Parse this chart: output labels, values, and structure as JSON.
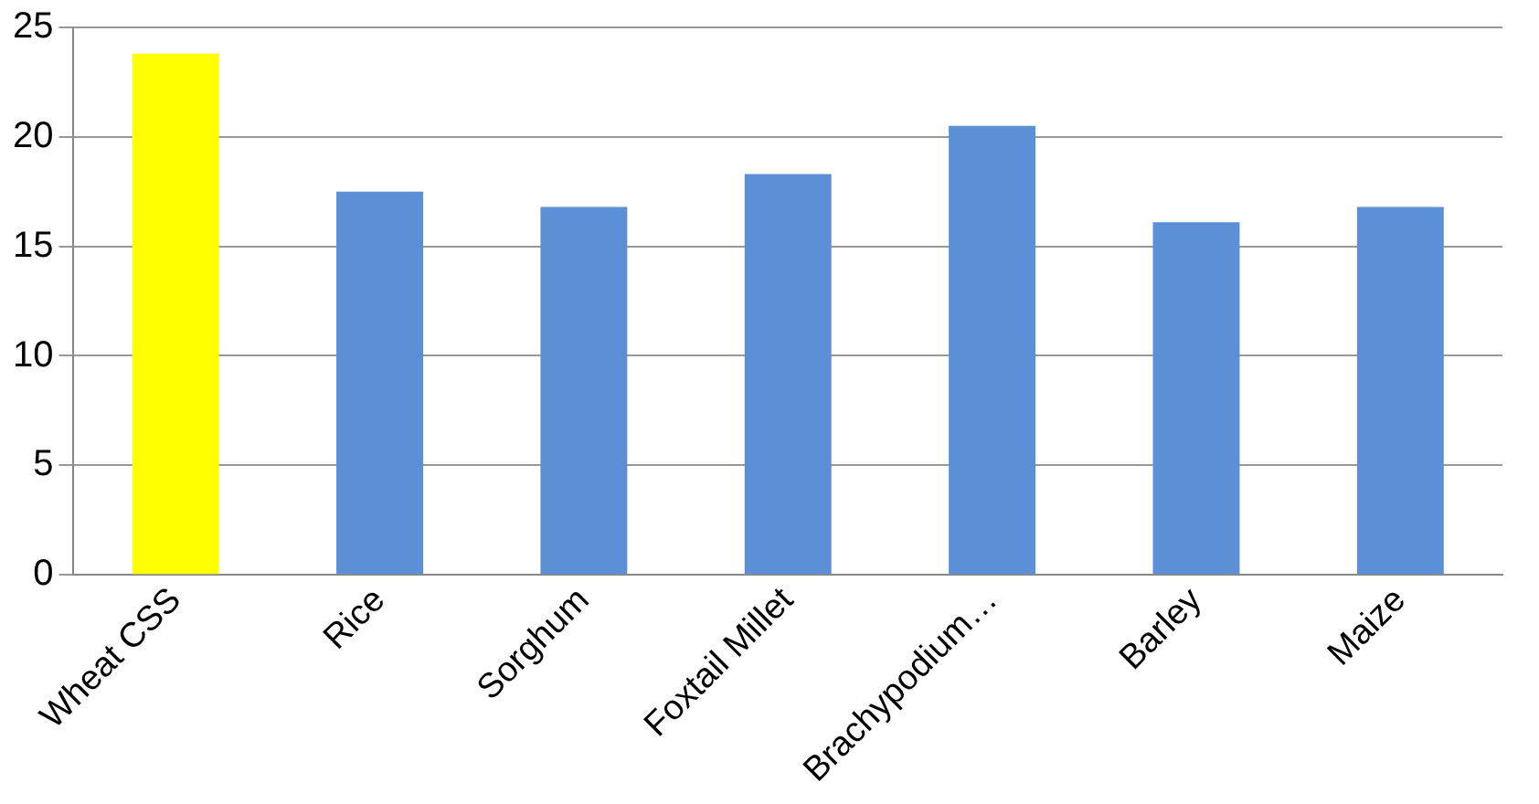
{
  "chart_data": {
    "type": "bar",
    "categories": [
      "Wheat CSS",
      "Rice",
      "Sorghum",
      "Foxtail Millet",
      "Brachypodium…",
      "Barley",
      "Maize"
    ],
    "values": [
      23.8,
      17.5,
      16.8,
      18.3,
      20.5,
      16.1,
      16.8
    ],
    "colors": [
      "#ffff00",
      "#5b8fd6",
      "#5b8fd6",
      "#5b8fd6",
      "#5b8fd6",
      "#5b8fd6",
      "#5b8fd6"
    ],
    "ylim": [
      0,
      25
    ],
    "yticks": [
      0,
      5,
      10,
      15,
      20,
      25
    ],
    "grid": "y",
    "legend": false
  }
}
